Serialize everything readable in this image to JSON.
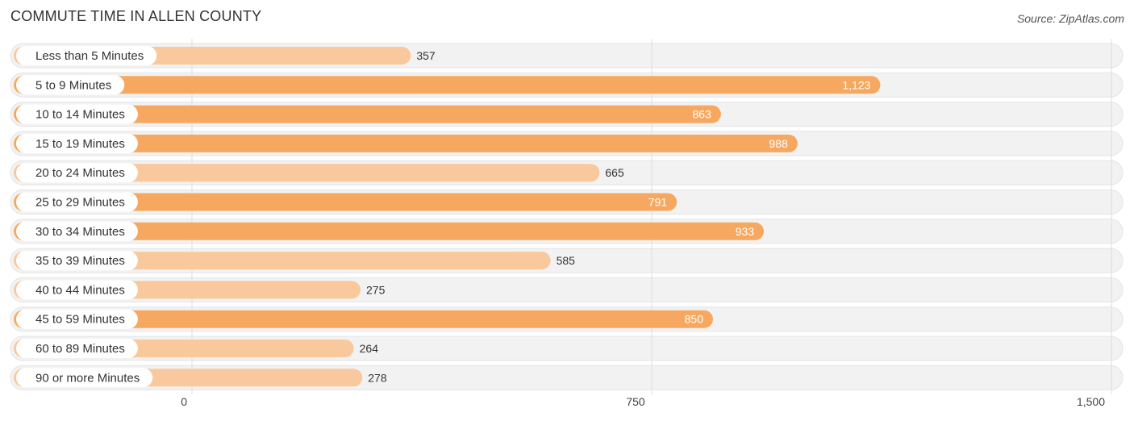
{
  "header": {
    "title": "COMMUTE TIME IN ALLEN COUNTY",
    "source": "Source: ZipAtlas.com"
  },
  "colors": {
    "bar_light": "#f9c89c",
    "bar_dark": "#f7a860",
    "track": "#f2f2f2",
    "grid": "#dddddd"
  },
  "chart_data": {
    "type": "bar",
    "orientation": "horizontal",
    "title": "COMMUTE TIME IN ALLEN COUNTY",
    "categories": [
      "Less than 5 Minutes",
      "5 to 9 Minutes",
      "10 to 14 Minutes",
      "15 to 19 Minutes",
      "20 to 24 Minutes",
      "25 to 29 Minutes",
      "30 to 34 Minutes",
      "35 to 39 Minutes",
      "40 to 44 Minutes",
      "45 to 59 Minutes",
      "60 to 89 Minutes",
      "90 or more Minutes"
    ],
    "values": [
      357,
      1123,
      863,
      988,
      665,
      791,
      933,
      585,
      275,
      850,
      264,
      278
    ],
    "value_labels": [
      "357",
      "1,123",
      "863",
      "988",
      "665",
      "791",
      "933",
      "585",
      "275",
      "850",
      "264",
      "278"
    ],
    "xlim": [
      0,
      1500
    ],
    "ticks": [
      0,
      750,
      1500
    ],
    "tick_labels": [
      "0",
      "750",
      "1,500"
    ],
    "grid": true
  }
}
